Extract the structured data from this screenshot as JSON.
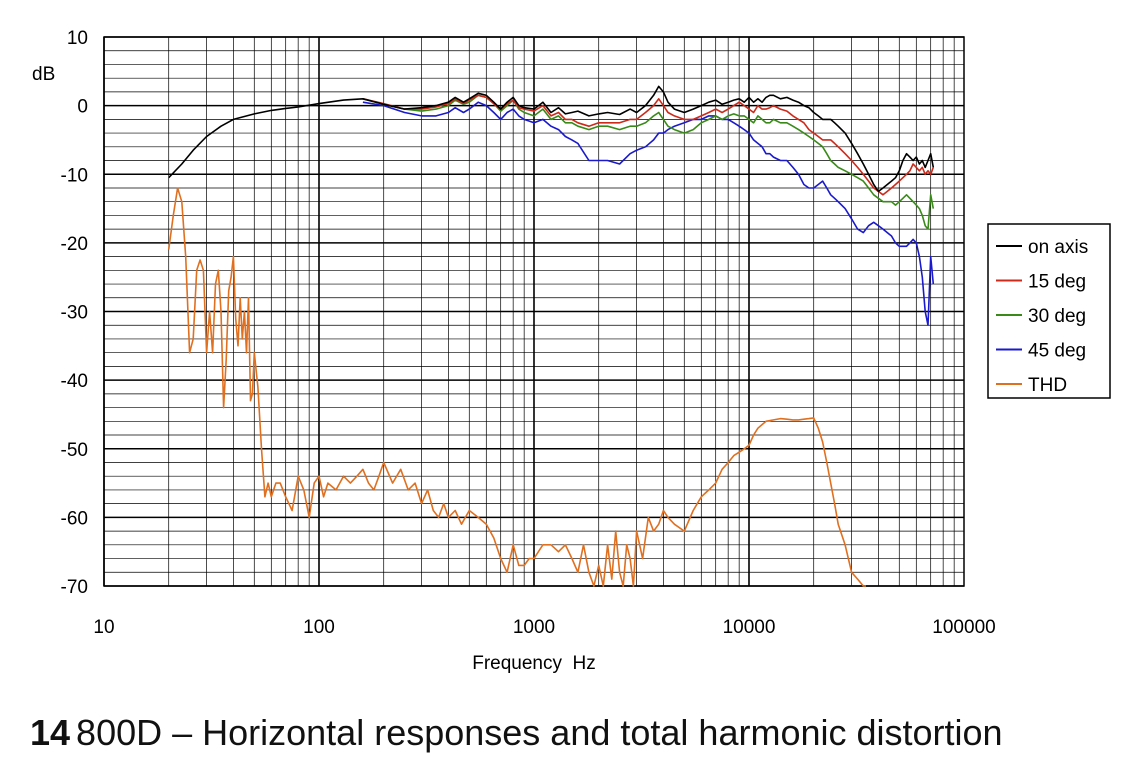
{
  "chart_data": {
    "type": "line",
    "title": "",
    "xlabel": "Frequency  Hz",
    "ylabel": "dB",
    "x_scale": "log",
    "xlim": [
      10,
      100000
    ],
    "ylim": [
      -70,
      10
    ],
    "x_ticks": [
      "10",
      "100",
      "1000",
      "10000",
      "100000"
    ],
    "y_ticks": [
      "10",
      "0",
      "-10",
      "-20",
      "-30",
      "-40",
      "-50",
      "-60",
      "-70"
    ],
    "grid": true,
    "legend_position": "right",
    "series": [
      {
        "name": "on axis",
        "color": "#000000",
        "x": [
          20,
          23,
          26,
          30,
          35,
          40,
          50,
          60,
          70,
          80,
          100,
          130,
          160,
          200,
          250,
          300,
          350,
          400,
          430,
          470,
          500,
          550,
          600,
          650,
          700,
          750,
          800,
          850,
          900,
          1000,
          1100,
          1200,
          1300,
          1400,
          1500,
          1600,
          1800,
          2000,
          2200,
          2500,
          2800,
          3000,
          3300,
          3600,
          3800,
          4000,
          4200,
          4500,
          5000,
          5500,
          6000,
          6500,
          7000,
          7500,
          8000,
          8500,
          9000,
          9500,
          10000,
          10500,
          11000,
          11500,
          12000,
          12500,
          13000,
          14000,
          15000,
          16000,
          17000,
          18000,
          19000,
          20000,
          21000,
          22000,
          23000,
          24000,
          25000,
          26000,
          28000,
          30000,
          32000,
          34000,
          36000,
          38000,
          40000,
          42000,
          44000,
          46000,
          48000,
          50000,
          52000,
          54000,
          56000,
          58000,
          60000,
          62000,
          64000,
          66000,
          68000,
          70000,
          72000
        ],
        "y": [
          -10.5,
          -8.5,
          -6.5,
          -4.5,
          -3,
          -2,
          -1.2,
          -0.7,
          -0.4,
          -0.2,
          0.3,
          0.8,
          1,
          0.2,
          -0.5,
          -0.3,
          0,
          0.5,
          1.2,
          0.5,
          1,
          1.8,
          1.5,
          0.5,
          -0.5,
          0.5,
          1.2,
          0,
          -0.3,
          -0.5,
          0.5,
          -1,
          -0.3,
          -1.2,
          -1,
          -0.8,
          -1.5,
          -1.2,
          -1,
          -1.3,
          -0.5,
          -1,
          0,
          1.5,
          2.8,
          2,
          0.5,
          -0.5,
          -1,
          -0.5,
          0,
          0.5,
          0.8,
          0.2,
          0.5,
          0.8,
          1,
          0.5,
          1.2,
          0.5,
          1,
          0.5,
          1.2,
          1.5,
          1.5,
          1,
          1.2,
          0.8,
          0.5,
          0,
          -0.3,
          -1,
          -1.5,
          -2,
          -2,
          -2,
          -2.5,
          -3,
          -4,
          -5.5,
          -7,
          -8.5,
          -10,
          -11.5,
          -12.5,
          -12,
          -11.5,
          -11,
          -10.5,
          -9.5,
          -8,
          -7,
          -7.5,
          -8,
          -7.5,
          -8.5,
          -8,
          -9,
          -8,
          -7,
          -9
        ]
      },
      {
        "name": "15 deg",
        "color": "#cc2a1a",
        "x": [
          160,
          200,
          250,
          300,
          350,
          400,
          430,
          470,
          500,
          550,
          600,
          650,
          700,
          750,
          800,
          850,
          900,
          1000,
          1100,
          1200,
          1300,
          1400,
          1500,
          1600,
          1800,
          2000,
          2200,
          2500,
          2800,
          3000,
          3300,
          3600,
          3800,
          4000,
          4200,
          4500,
          5000,
          5500,
          6000,
          6500,
          7000,
          7500,
          8000,
          8500,
          9000,
          9500,
          10000,
          10500,
          11000,
          11500,
          12000,
          12500,
          13000,
          14000,
          15000,
          16000,
          17000,
          18000,
          19000,
          20000,
          21000,
          22000,
          23000,
          24000,
          25000,
          26000,
          28000,
          30000,
          32000,
          34000,
          36000,
          38000,
          40000,
          42000,
          44000,
          46000,
          48000,
          50000,
          52000,
          54000,
          56000,
          58000,
          60000,
          62000,
          64000,
          66000,
          68000,
          70000,
          72000
        ],
        "y": [
          1,
          0.3,
          -0.5,
          -0.5,
          -0.2,
          0.3,
          1,
          0.3,
          0.8,
          1.5,
          1.2,
          0.3,
          -0.5,
          0.3,
          0.8,
          -0.3,
          -0.5,
          -0.8,
          0,
          -1.5,
          -1,
          -2,
          -2,
          -2.5,
          -3,
          -2.5,
          -2.5,
          -2.5,
          -2,
          -2,
          -1,
          0,
          1,
          0,
          -1,
          -1.5,
          -2,
          -2,
          -1.5,
          -1,
          -0.5,
          -1,
          -0.5,
          0,
          0.5,
          0,
          -0.5,
          -1,
          0,
          -0.5,
          -0.5,
          -0.3,
          0,
          -0.5,
          -0.8,
          -1.5,
          -2,
          -2.5,
          -3.5,
          -4,
          -4.5,
          -5,
          -5,
          -5,
          -5.5,
          -6,
          -7,
          -8,
          -9,
          -10,
          -11,
          -12,
          -12.5,
          -13,
          -12.5,
          -12,
          -11.5,
          -11,
          -10.5,
          -10,
          -9.5,
          -8.5,
          -9,
          -9.5,
          -9,
          -10,
          -9.5,
          -10,
          -9
        ]
      },
      {
        "name": "30 deg",
        "color": "#3a8a1a",
        "x": [
          160,
          200,
          250,
          300,
          350,
          400,
          430,
          470,
          500,
          550,
          600,
          650,
          700,
          750,
          800,
          850,
          900,
          1000,
          1100,
          1200,
          1300,
          1400,
          1500,
          1600,
          1800,
          2000,
          2200,
          2500,
          2800,
          3000,
          3300,
          3600,
          3800,
          4000,
          4200,
          4500,
          5000,
          5500,
          6000,
          6500,
          7000,
          7500,
          8000,
          8500,
          9000,
          9500,
          10000,
          10500,
          11000,
          11500,
          12000,
          12500,
          13000,
          14000,
          15000,
          16000,
          17000,
          18000,
          19000,
          20000,
          21000,
          22000,
          23000,
          24000,
          25000,
          26000,
          28000,
          30000,
          32000,
          34000,
          36000,
          38000,
          40000,
          42000,
          44000,
          46000,
          48000,
          50000,
          52000,
          54000,
          56000,
          58000,
          60000,
          62000,
          64000,
          66000,
          68000,
          70000,
          72000
        ],
        "y": [
          1,
          0.2,
          -0.5,
          -0.8,
          -0.5,
          0,
          0.8,
          0.2,
          0.5,
          1.5,
          1.2,
          0.3,
          -0.8,
          0,
          0.8,
          -0.5,
          -1,
          -1.5,
          -0.5,
          -2,
          -1.5,
          -2.5,
          -2.5,
          -3,
          -3.5,
          -3,
          -3,
          -3.5,
          -3,
          -3,
          -2.5,
          -1.5,
          -1,
          -2,
          -3,
          -3.5,
          -4,
          -3.5,
          -2.5,
          -2,
          -1.5,
          -2,
          -1.5,
          -1.2,
          -1.5,
          -1.5,
          -2,
          -2.5,
          -1.5,
          -2,
          -2.5,
          -2.5,
          -2,
          -2.5,
          -2.5,
          -3,
          -3.5,
          -4,
          -4.5,
          -5,
          -5.5,
          -6,
          -7,
          -8,
          -8.5,
          -9,
          -9.5,
          -10,
          -10.5,
          -11,
          -12,
          -13,
          -13.5,
          -14,
          -14,
          -14,
          -14.5,
          -14,
          -13.5,
          -13,
          -13.5,
          -14,
          -14.5,
          -15,
          -16,
          -17.5,
          -18,
          -13,
          -15
        ]
      },
      {
        "name": "45 deg",
        "color": "#1a1acc",
        "x": [
          160,
          200,
          250,
          300,
          350,
          400,
          430,
          470,
          500,
          550,
          600,
          650,
          700,
          750,
          800,
          850,
          900,
          1000,
          1100,
          1200,
          1300,
          1400,
          1500,
          1600,
          1800,
          2000,
          2200,
          2500,
          2800,
          3000,
          3300,
          3600,
          3800,
          4000,
          4200,
          4500,
          5000,
          5500,
          6000,
          6500,
          7000,
          7500,
          8000,
          8500,
          9000,
          9500,
          10000,
          10500,
          11000,
          11500,
          12000,
          12500,
          13000,
          14000,
          15000,
          16000,
          17000,
          18000,
          19000,
          20000,
          21000,
          22000,
          23000,
          24000,
          25000,
          26000,
          28000,
          30000,
          32000,
          34000,
          36000,
          38000,
          40000,
          42000,
          44000,
          46000,
          48000,
          50000,
          52000,
          54000,
          56000,
          58000,
          60000,
          62000,
          64000,
          66000,
          68000,
          70000,
          72000
        ],
        "y": [
          0.5,
          0,
          -1,
          -1.5,
          -1.5,
          -1,
          -0.3,
          -1,
          -0.5,
          0.5,
          0,
          -1,
          -2,
          -1,
          -0.5,
          -1.5,
          -2,
          -2.5,
          -2,
          -3,
          -3.5,
          -4.5,
          -5,
          -5.5,
          -8,
          -8,
          -8,
          -8.5,
          -7,
          -6.5,
          -6,
          -5,
          -4,
          -4,
          -3.5,
          -3,
          -2.5,
          -2,
          -2,
          -1.5,
          -1.5,
          -2,
          -2,
          -2.5,
          -3,
          -3.5,
          -4,
          -5,
          -5.5,
          -6,
          -7,
          -7,
          -7.5,
          -8,
          -8,
          -9,
          -10,
          -11.5,
          -12,
          -12,
          -11.5,
          -11,
          -12,
          -13,
          -13.5,
          -14,
          -15,
          -16.5,
          -18,
          -18.5,
          -17.5,
          -17,
          -17.5,
          -18,
          -18.5,
          -19,
          -20,
          -20.5,
          -20.5,
          -20.5,
          -20,
          -19.5,
          -20,
          -22,
          -25,
          -30,
          -32,
          -22,
          -26
        ]
      },
      {
        "name": "THD",
        "color": "#e07020",
        "x": [
          20,
          21,
          22,
          23,
          24,
          25,
          26,
          27,
          28,
          29,
          30,
          31,
          32,
          33,
          34,
          35,
          36,
          37,
          38,
          39,
          40,
          41,
          42,
          43,
          44,
          45,
          46,
          47,
          48,
          49,
          50,
          52,
          54,
          56,
          58,
          60,
          63,
          66,
          70,
          75,
          80,
          85,
          90,
          95,
          100,
          105,
          110,
          120,
          130,
          140,
          150,
          160,
          170,
          180,
          190,
          200,
          220,
          240,
          260,
          280,
          300,
          320,
          340,
          360,
          380,
          400,
          430,
          460,
          500,
          550,
          600,
          650,
          700,
          750,
          800,
          850,
          900,
          950,
          1000,
          1100,
          1200,
          1300,
          1400,
          1500,
          1600,
          1700,
          1800,
          1900,
          2000,
          2100,
          2200,
          2300,
          2400,
          2500,
          2600,
          2700,
          2800,
          2900,
          3000,
          3200,
          3400,
          3600,
          3800,
          4000,
          4200,
          4500,
          5000,
          5500,
          6000,
          6500,
          7000,
          7500,
          8000,
          8500,
          9000,
          9500,
          10000,
          10500,
          11000,
          12000,
          13000,
          14000,
          15000,
          16000,
          17000,
          18000,
          19000,
          20000,
          21000,
          22000,
          23000,
          24000,
          25000,
          26000,
          28000,
          30000,
          32000,
          34000,
          35000
        ],
        "y": [
          -21,
          -16,
          -12,
          -14,
          -22,
          -36,
          -34,
          -24,
          -22.5,
          -24,
          -36,
          -30,
          -36,
          -26,
          -24,
          -30,
          -44,
          -37,
          -27,
          -25,
          -22,
          -31,
          -35,
          -28,
          -34,
          -30,
          -36,
          -28,
          -43,
          -42,
          -36,
          -41,
          -50,
          -57,
          -55,
          -57,
          -55,
          -55,
          -57,
          -59,
          -54,
          -56,
          -60,
          -55,
          -54,
          -57,
          -55,
          -56,
          -54,
          -55,
          -54,
          -53,
          -55,
          -56,
          -54,
          -52,
          -55,
          -53,
          -56,
          -55,
          -58,
          -56,
          -59,
          -60,
          -58,
          -60,
          -59,
          -61,
          -59,
          -60,
          -61,
          -63,
          -66,
          -68,
          -64,
          -67,
          -67,
          -66,
          -66,
          -64,
          -64,
          -65,
          -64,
          -66,
          -68,
          -64,
          -68,
          -70,
          -67,
          -70,
          -64,
          -69,
          -62,
          -68,
          -70,
          -64,
          -66,
          -70,
          -62,
          -66,
          -60,
          -62,
          -61,
          -59,
          -60,
          -61,
          -62,
          -59,
          -57,
          -56,
          -55,
          -53,
          -52,
          -51,
          -50.5,
          -50,
          -49.5,
          -48,
          -47,
          -46,
          -45.8,
          -45.6,
          -45.7,
          -45.8,
          -45.8,
          -45.7,
          -45.6,
          -45.5,
          -47,
          -49,
          -52,
          -55,
          -58,
          -61,
          -64,
          -68,
          -69,
          -70,
          -70
        ]
      }
    ]
  },
  "caption": {
    "number": "14",
    "text": "800D – Horizontal responses and total harmonic distortion"
  }
}
